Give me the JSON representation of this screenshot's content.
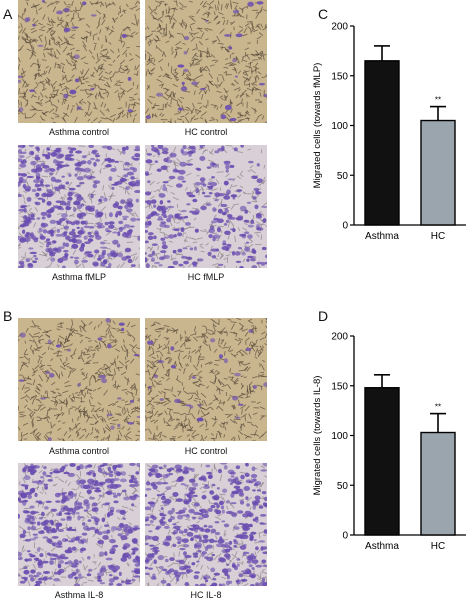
{
  "panels": {
    "A": {
      "letter": "A",
      "images": [
        {
          "caption": "Asthma control",
          "style": "sparse"
        },
        {
          "caption": "HC control",
          "style": "sparse"
        },
        {
          "caption": "Asthma fMLP",
          "style": "dense"
        },
        {
          "caption": "HC fMLP",
          "style": "medium"
        }
      ]
    },
    "B": {
      "letter": "B",
      "images": [
        {
          "caption": "Asthma control",
          "style": "sparse"
        },
        {
          "caption": "HC control",
          "style": "sparse"
        },
        {
          "caption": "Asthma IL-8",
          "style": "dense"
        },
        {
          "caption": "HC IL-8",
          "style": "dense"
        }
      ]
    },
    "C": {
      "letter": "C"
    },
    "D": {
      "letter": "D"
    }
  },
  "colors": {
    "stain_background": "#c9b68f",
    "stain_purple": "#6a4cb0",
    "stain_dark": "#5a4a3a",
    "bar_asthma": "#111111",
    "bar_hc": "#9aa5ad"
  },
  "chart_data": [
    {
      "type": "bar",
      "panel": "C",
      "categories": [
        "Asthma",
        "HC"
      ],
      "values": [
        165,
        105
      ],
      "errors": [
        15,
        14
      ],
      "annotations": [
        "",
        "**"
      ],
      "ylabel": "Migrated cells (towards fMLP)",
      "ylim": [
        0,
        200
      ],
      "yticks": [
        0,
        50,
        100,
        150,
        200
      ],
      "colors": [
        "#111111",
        "#9aa5ad"
      ]
    },
    {
      "type": "bar",
      "panel": "D",
      "categories": [
        "Asthma",
        "HC"
      ],
      "values": [
        148,
        103
      ],
      "errors": [
        13,
        19
      ],
      "annotations": [
        "",
        "**"
      ],
      "ylabel": "Migrated cells (towards IL-8)",
      "ylim": [
        0,
        200
      ],
      "yticks": [
        0,
        50,
        100,
        150,
        200
      ],
      "colors": [
        "#111111",
        "#9aa5ad"
      ]
    }
  ]
}
